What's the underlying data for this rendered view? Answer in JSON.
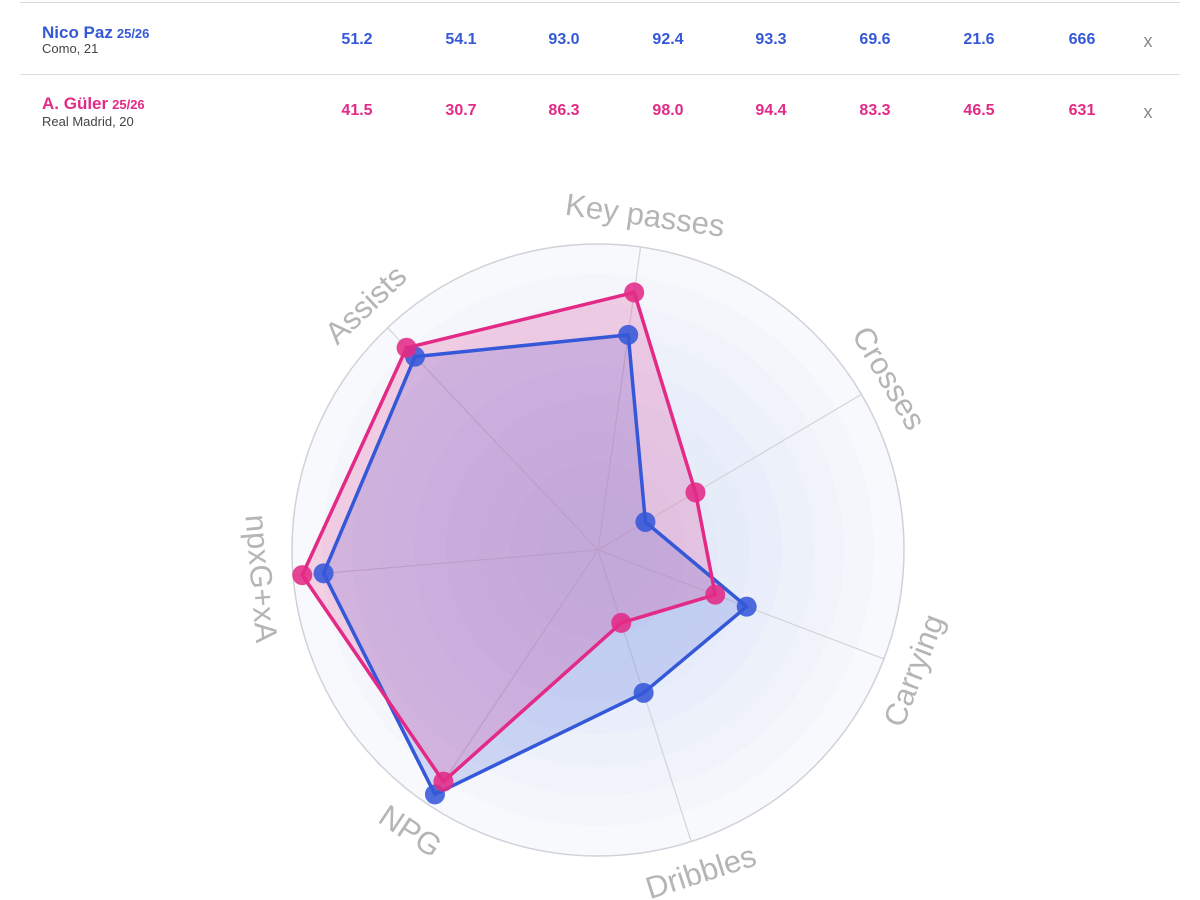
{
  "players": [
    {
      "name": "Nico Paz",
      "season": "25/26",
      "team_age": "Como, 21",
      "color": "#3558d8",
      "stats": [
        "51.2",
        "54.1",
        "93.0",
        "92.4",
        "93.3",
        "69.6",
        "21.6",
        "666"
      ],
      "remove_label": "x"
    },
    {
      "name": "A. Güler",
      "season": "25/26",
      "team_age": "Real Madrid, 20",
      "color": "#e22a86",
      "stats": [
        "41.5",
        "30.7",
        "86.3",
        "98.0",
        "94.4",
        "83.3",
        "46.5",
        "631"
      ],
      "remove_label": "x"
    }
  ],
  "chart_data": {
    "type": "radar",
    "axes": [
      "Key passes",
      "Crosses",
      "Carrying",
      "Dribbles",
      "NPG",
      "npxG+xA",
      "Assists"
    ],
    "range": [
      0,
      100
    ],
    "series": [
      {
        "name": "Nico Paz",
        "color": "#3558d8",
        "values": [
          71,
          18,
          52,
          49,
          96,
          90,
          87
        ]
      },
      {
        "name": "A. Güler",
        "color": "#e22a86",
        "values": [
          85,
          37,
          41,
          25,
          91,
          97,
          91
        ]
      }
    ]
  }
}
